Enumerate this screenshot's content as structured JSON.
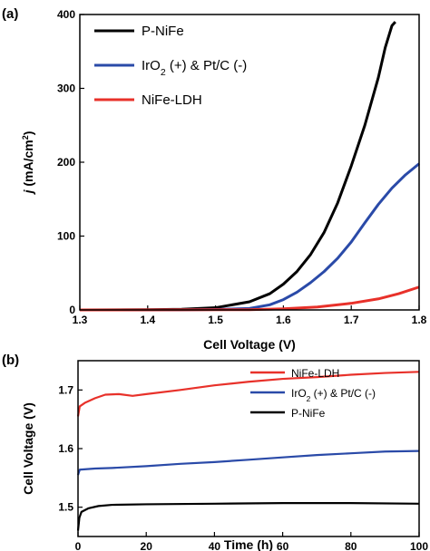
{
  "chart_data": [
    {
      "type": "line",
      "panel_label": "(a)",
      "xlabel": "Cell Voltage (V)",
      "ylabel": "j (mA/cm²)",
      "xlim": [
        1.3,
        1.8
      ],
      "ylim": [
        0,
        400
      ],
      "x_ticks": [
        "1.3",
        "1.4",
        "1.5",
        "1.6",
        "1.7",
        "1.8"
      ],
      "y_ticks": [
        "0",
        "100",
        "200",
        "300",
        "400"
      ],
      "grid": false,
      "legend_position": "top-left",
      "series": [
        {
          "name": "P-NiFe",
          "color": "#000000",
          "points": [
            [
              1.3,
              0
            ],
            [
              1.4,
              0.3
            ],
            [
              1.45,
              1
            ],
            [
              1.5,
              3
            ],
            [
              1.55,
              11
            ],
            [
              1.58,
              22
            ],
            [
              1.6,
              35
            ],
            [
              1.62,
              52
            ],
            [
              1.64,
              75
            ],
            [
              1.66,
              105
            ],
            [
              1.68,
              145
            ],
            [
              1.7,
              195
            ],
            [
              1.72,
              250
            ],
            [
              1.74,
              315
            ],
            [
              1.75,
              355
            ],
            [
              1.76,
              385
            ],
            [
              1.765,
              390
            ]
          ]
        },
        {
          "name": "IrO2 (+) & Pt/C (-)",
          "name_parts": {
            "a": "IrO",
            "sub": "2",
            "b": " (+) & Pt/C (-)"
          },
          "color": "#2a4aa8",
          "points": [
            [
              1.3,
              0
            ],
            [
              1.45,
              0.2
            ],
            [
              1.5,
              0.6
            ],
            [
              1.55,
              2
            ],
            [
              1.58,
              7
            ],
            [
              1.6,
              14
            ],
            [
              1.62,
              24
            ],
            [
              1.64,
              37
            ],
            [
              1.66,
              52
            ],
            [
              1.68,
              70
            ],
            [
              1.7,
              92
            ],
            [
              1.72,
              118
            ],
            [
              1.74,
              143
            ],
            [
              1.76,
              165
            ],
            [
              1.78,
              183
            ],
            [
              1.8,
              198
            ]
          ]
        },
        {
          "name": "NiFe-LDH",
          "color": "#e8312a",
          "points": [
            [
              1.3,
              0
            ],
            [
              1.55,
              0.3
            ],
            [
              1.6,
              1.5
            ],
            [
              1.65,
              4
            ],
            [
              1.7,
              9
            ],
            [
              1.74,
              15
            ],
            [
              1.77,
              22
            ],
            [
              1.8,
              31
            ]
          ]
        }
      ]
    },
    {
      "type": "line",
      "panel_label": "(b)",
      "xlabel": "Time (h)",
      "ylabel": "Cell Voltage (V)",
      "xlim": [
        0,
        100
      ],
      "ylim": [
        1.45,
        1.75
      ],
      "x_ticks": [
        "0",
        "20",
        "40",
        "60",
        "80",
        "100"
      ],
      "y_ticks": [
        "1.5",
        "1.6",
        "1.7"
      ],
      "grid": false,
      "legend_position": "top-right",
      "series": [
        {
          "name": "NiFe-LDH",
          "color": "#e8312a",
          "points": [
            [
              0,
              1.655
            ],
            [
              0.5,
              1.672
            ],
            [
              2,
              1.678
            ],
            [
              5,
              1.686
            ],
            [
              8,
              1.692
            ],
            [
              12,
              1.693
            ],
            [
              16,
              1.69
            ],
            [
              20,
              1.693
            ],
            [
              30,
              1.7
            ],
            [
              40,
              1.708
            ],
            [
              50,
              1.714
            ],
            [
              60,
              1.719
            ],
            [
              70,
              1.722
            ],
            [
              80,
              1.726
            ],
            [
              90,
              1.729
            ],
            [
              100,
              1.731
            ]
          ]
        },
        {
          "name": "IrO2 (+) & Pt/C (-)",
          "name_parts": {
            "a": "IrO",
            "sub": "2",
            "b": " (+) & Pt/C (-)"
          },
          "color": "#2a4aa8",
          "points": [
            [
              0,
              1.555
            ],
            [
              0.5,
              1.564
            ],
            [
              5,
              1.566
            ],
            [
              10,
              1.567
            ],
            [
              20,
              1.57
            ],
            [
              30,
              1.574
            ],
            [
              40,
              1.577
            ],
            [
              50,
              1.581
            ],
            [
              60,
              1.585
            ],
            [
              70,
              1.589
            ],
            [
              80,
              1.592
            ],
            [
              90,
              1.595
            ],
            [
              100,
              1.596
            ]
          ]
        },
        {
          "name": "P-NiFe",
          "color": "#000000",
          "points": [
            [
              0,
              1.46
            ],
            [
              0.4,
              1.482
            ],
            [
              1,
              1.492
            ],
            [
              3,
              1.498
            ],
            [
              6,
              1.502
            ],
            [
              10,
              1.504
            ],
            [
              20,
              1.505
            ],
            [
              40,
              1.506
            ],
            [
              60,
              1.507
            ],
            [
              80,
              1.507
            ],
            [
              100,
              1.506
            ]
          ]
        }
      ]
    }
  ]
}
